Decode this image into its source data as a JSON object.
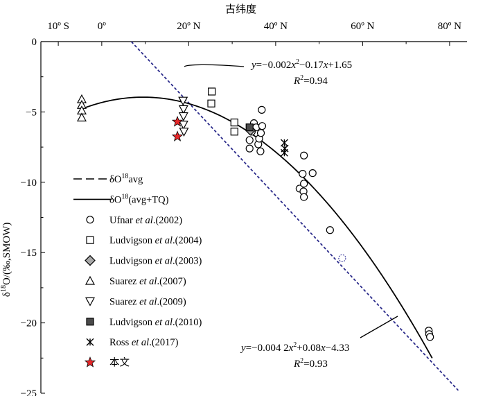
{
  "chart_data": {
    "type": "scatter",
    "x_axis": {
      "title": "古纬度",
      "ticks": [
        {
          "value": -10,
          "label": "10º S"
        },
        {
          "value": 0,
          "label": "0º"
        },
        {
          "value": 20,
          "label": "20º N"
        },
        {
          "value": 40,
          "label": "40º N"
        },
        {
          "value": 60,
          "label": "60º N"
        },
        {
          "value": 80,
          "label": "80º N"
        }
      ],
      "range": [
        -14,
        84
      ]
    },
    "y_axis": {
      "title_main": "δ",
      "title_sup": "18",
      "title_rest": "O/(‰,SMOW)",
      "ticks": [
        0,
        -5,
        -10,
        -15,
        -20,
        -25
      ],
      "range": [
        -25,
        0
      ]
    },
    "series": [
      {
        "key": "ufnar",
        "marker": "circle",
        "fill": "#ffffff",
        "stroke": "#000000",
        "points": [
          [
            34,
            -7.6
          ],
          [
            34,
            -7.0
          ],
          [
            34.5,
            -6.4
          ],
          [
            35,
            -5.8
          ],
          [
            35.5,
            -6.1
          ],
          [
            36,
            -7.3
          ],
          [
            36.5,
            -7.8
          ],
          [
            36.2,
            -6.9
          ],
          [
            36.6,
            -6.5
          ],
          [
            36.8,
            -4.85
          ],
          [
            36.9,
            -6.0
          ],
          [
            46.5,
            -8.1
          ],
          [
            46.2,
            -9.4
          ],
          [
            48.5,
            -9.35
          ],
          [
            45.5,
            -10.45
          ],
          [
            46.5,
            -10.1
          ],
          [
            46.4,
            -10.65
          ],
          [
            46.5,
            -11.05
          ],
          [
            52.5,
            -13.4
          ],
          [
            75.2,
            -20.55
          ],
          [
            75.3,
            -20.8
          ],
          [
            75.5,
            -21.0
          ]
        ]
      },
      {
        "key": "ufnar_dotted",
        "marker": "circle",
        "fill": "#ffffff",
        "stroke": "#3c3c9e",
        "dashed": true,
        "points": [
          [
            55.3,
            -15.4
          ]
        ]
      },
      {
        "key": "ludvigson2004",
        "marker": "square",
        "fill": "#ffffff",
        "stroke": "#000000",
        "points": [
          [
            25.3,
            -3.55
          ],
          [
            25.2,
            -4.4
          ],
          [
            30.5,
            -5.75
          ],
          [
            30.5,
            -6.4
          ]
        ]
      },
      {
        "key": "ludvigson2003",
        "marker": "diamond",
        "fill": "#a8a8a8",
        "stroke": "#000000",
        "points": [
          [
            34.2,
            -6.3
          ]
        ]
      },
      {
        "key": "suarez2007",
        "marker": "triangle-up",
        "fill": "#ffffff",
        "stroke": "#000000",
        "points": [
          [
            -4.6,
            -4.1
          ],
          [
            -4.6,
            -4.5
          ],
          [
            -4.6,
            -4.9
          ],
          [
            -4.6,
            -5.4
          ]
        ]
      },
      {
        "key": "suarez2009",
        "marker": "triangle-down",
        "fill": "#ffffff",
        "stroke": "#000000",
        "points": [
          [
            18.7,
            -4.2
          ],
          [
            18.8,
            -4.8
          ],
          [
            18.8,
            -5.3
          ],
          [
            18.8,
            -5.9
          ],
          [
            18.9,
            -6.4
          ]
        ]
      },
      {
        "key": "ludvigson2010",
        "marker": "square-filled",
        "fill": "#4a4a4a",
        "stroke": "#000000",
        "points": [
          [
            34.0,
            -6.1
          ]
        ]
      },
      {
        "key": "ross2017",
        "marker": "asterisk",
        "fill": "none",
        "stroke": "#000000",
        "points": [
          [
            42.0,
            -7.2
          ],
          [
            42.1,
            -7.6
          ],
          [
            42.0,
            -7.9
          ]
        ]
      },
      {
        "key": "this_study",
        "marker": "star",
        "fill": "#e8272a",
        "stroke": "#000000",
        "points": [
          [
            17.4,
            -5.7
          ],
          [
            17.4,
            -6.75
          ]
        ]
      }
    ],
    "curves": {
      "linear_avg": {
        "points": [
          [
            6.8,
            0
          ],
          [
            82,
            -24.8
          ]
        ],
        "color": "#2a2a8a",
        "dash": "4,3"
      },
      "quadratic": {
        "a": -0.0042,
        "b": 0.08,
        "c": -4.33,
        "x_range": [
          -5,
          76
        ],
        "color": "#000000"
      }
    },
    "annotations": [
      {
        "key": "eq1",
        "text_parts": [
          [
            "y",
            "italic"
          ],
          [
            "=−0.002",
            "normal"
          ],
          [
            "x",
            "italic"
          ],
          [
            "2",
            "sup"
          ],
          [
            "−0.17",
            "normal"
          ],
          [
            "x",
            "italic"
          ],
          [
            "+1.65",
            "normal"
          ]
        ]
      },
      {
        "key": "r1",
        "text_parts": [
          [
            "R",
            "italic"
          ],
          [
            "2",
            "sup"
          ],
          [
            "=0.94",
            "normal"
          ]
        ]
      },
      {
        "key": "eq2",
        "text_parts": [
          [
            "y",
            "italic"
          ],
          [
            "=−0.004 2",
            "normal"
          ],
          [
            "x",
            "italic"
          ],
          [
            "2",
            "sup"
          ],
          [
            "+0.08",
            "normal"
          ],
          [
            "x",
            "italic"
          ],
          [
            "−4.33",
            "normal"
          ]
        ]
      },
      {
        "key": "r2",
        "text_parts": [
          [
            "R",
            "italic"
          ],
          [
            "2",
            "sup"
          ],
          [
            "=0.93",
            "normal"
          ]
        ]
      }
    ],
    "legend": {
      "position": "left-middle",
      "entries": [
        {
          "key": "linear_avg",
          "type": "line-dashed",
          "parts": [
            [
              "δO",
              "normal"
            ],
            [
              "18",
              "sup"
            ],
            [
              "avg",
              "normal"
            ]
          ]
        },
        {
          "key": "quadratic",
          "type": "line-solid",
          "parts": [
            [
              "δO",
              "normal"
            ],
            [
              "18",
              "sup"
            ],
            [
              "(avg+TQ)",
              "normal"
            ]
          ]
        },
        {
          "key": "ufnar",
          "type": "circle",
          "parts": [
            [
              "Ufnar ",
              "normal"
            ],
            [
              "et al",
              "italic"
            ],
            [
              ".(2002)",
              "normal"
            ]
          ]
        },
        {
          "key": "ludvigson2004",
          "type": "square",
          "parts": [
            [
              "Ludvigson ",
              "normal"
            ],
            [
              "et al",
              "italic"
            ],
            [
              ".(2004)",
              "normal"
            ]
          ]
        },
        {
          "key": "ludvigson2003",
          "type": "diamond",
          "parts": [
            [
              "Ludvigson ",
              "normal"
            ],
            [
              "et al",
              "italic"
            ],
            [
              ".(2003)",
              "normal"
            ]
          ]
        },
        {
          "key": "suarez2007",
          "type": "triangle-up",
          "parts": [
            [
              "Suarez ",
              "normal"
            ],
            [
              "et al",
              "italic"
            ],
            [
              ".(2007)",
              "normal"
            ]
          ]
        },
        {
          "key": "suarez2009",
          "type": "triangle-down",
          "parts": [
            [
              "Suarez ",
              "normal"
            ],
            [
              "et al",
              "italic"
            ],
            [
              ".(2009)",
              "normal"
            ]
          ]
        },
        {
          "key": "ludvigson2010",
          "type": "square-filled",
          "parts": [
            [
              "Ludvigson ",
              "normal"
            ],
            [
              "et al",
              "italic"
            ],
            [
              ".(2010)",
              "normal"
            ]
          ]
        },
        {
          "key": "ross2017",
          "type": "asterisk",
          "parts": [
            [
              "Ross ",
              "normal"
            ],
            [
              "et al",
              "italic"
            ],
            [
              ".(2017)",
              "normal"
            ]
          ]
        },
        {
          "key": "this_study",
          "type": "star",
          "parts": [
            [
              "本文",
              "normal"
            ]
          ]
        }
      ]
    }
  }
}
